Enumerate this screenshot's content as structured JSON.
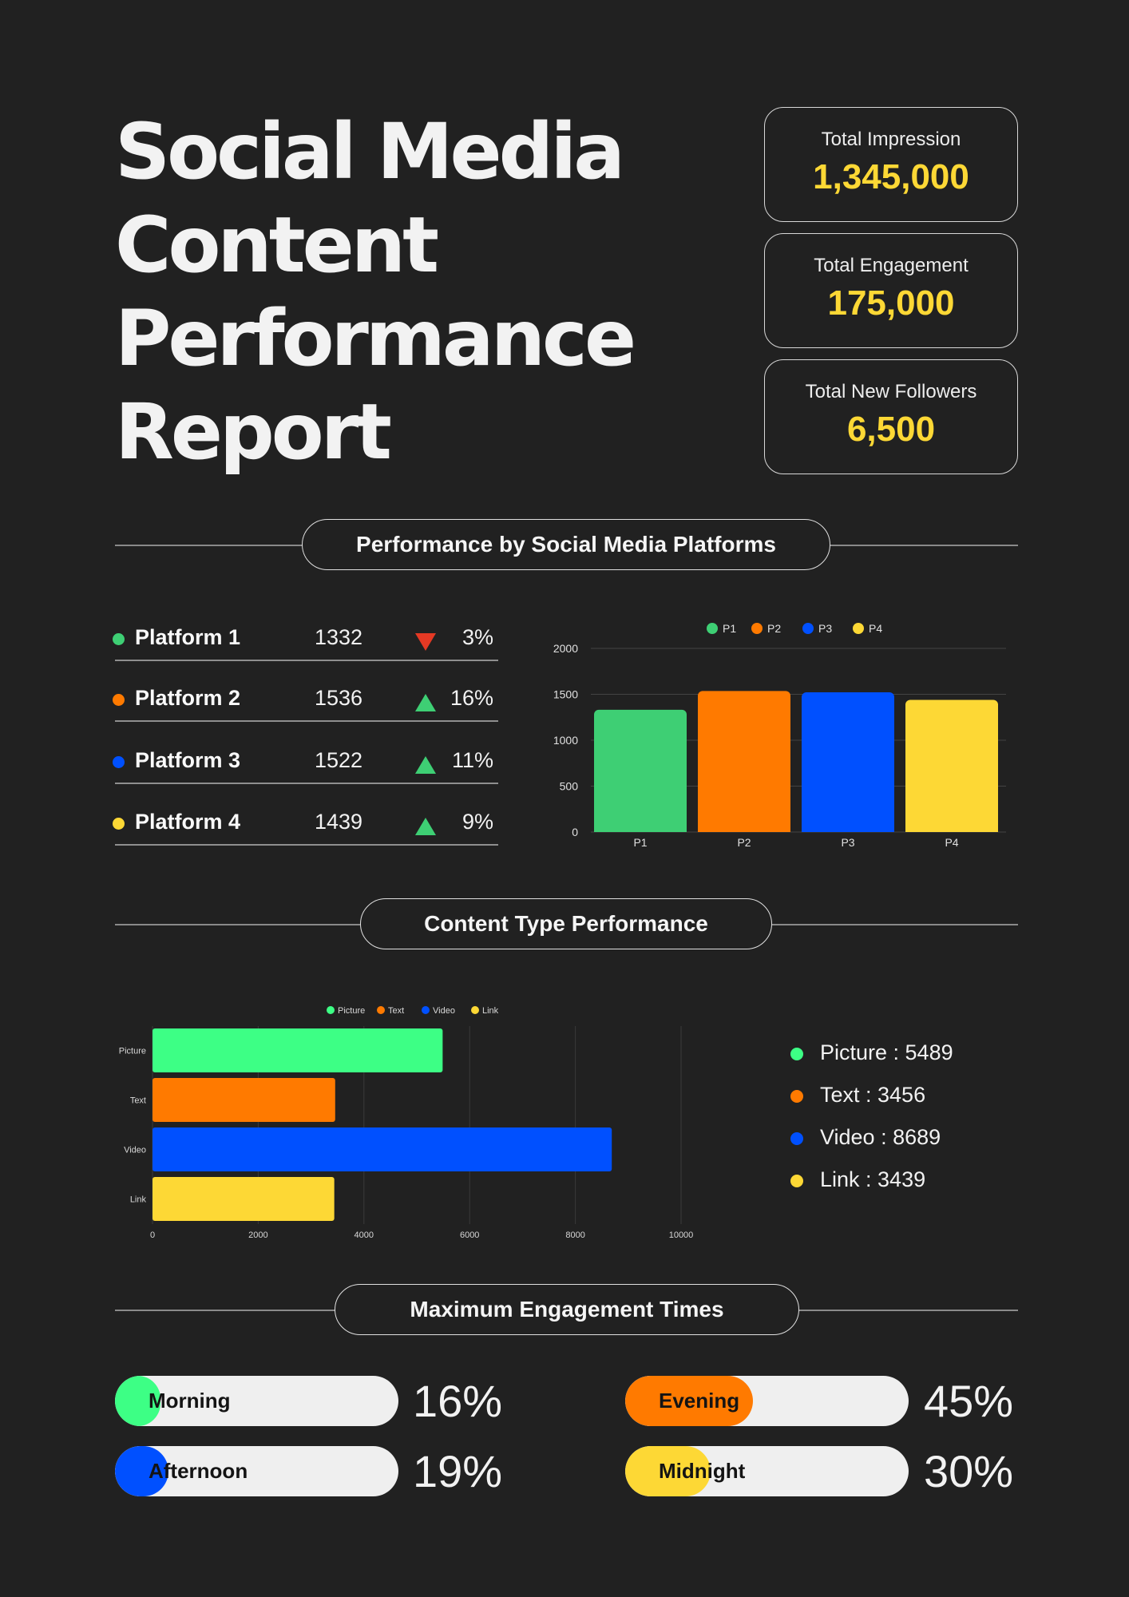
{
  "title": {
    "line1": "Social Media",
    "line2": "Content",
    "line3": "Performance",
    "line4": "Report"
  },
  "kpis": [
    {
      "label": "Total Impression",
      "value": "1,345,000"
    },
    {
      "label": "Total Engagement",
      "value": "175,000"
    },
    {
      "label": "Total New Followers",
      "value": "6,500"
    }
  ],
  "sections": {
    "platforms": "Performance by Social Media Platforms",
    "content": "Content Type Performance",
    "times": "Maximum Engagement Times"
  },
  "colors": {
    "green": "#3ecf74",
    "orange": "#ff7a00",
    "blue": "#0050ff",
    "yellow": "#fdd835",
    "accent": "#fdd835",
    "down": "#e53924",
    "up": "#3ecf74",
    "bright_green": "#3dff85"
  },
  "platforms": [
    {
      "name": "Platform 1",
      "value": "1332",
      "trend": "down",
      "change": "3%"
    },
    {
      "name": "Platform 2",
      "value": "1536",
      "trend": "up",
      "change": "16%"
    },
    {
      "name": "Platform 3",
      "value": "1522",
      "trend": "up",
      "change": "11%"
    },
    {
      "name": "Platform 4",
      "value": "1439",
      "trend": "up",
      "change": "9%"
    }
  ],
  "content_list": [
    {
      "text": "Picture : 5489"
    },
    {
      "text": "Text : 3456"
    },
    {
      "text": "Video : 8689"
    },
    {
      "text": "Link : 3439"
    }
  ],
  "times": [
    {
      "label": "Morning",
      "percent": "16%",
      "value": 16
    },
    {
      "label": "Evening",
      "percent": "45%",
      "value": 45
    },
    {
      "label": "Afternoon",
      "percent": "19%",
      "value": 19
    },
    {
      "label": "Midnight",
      "percent": "30%",
      "value": 30
    }
  ],
  "chart_data": [
    {
      "type": "bar",
      "categories": [
        "P1",
        "P2",
        "P3",
        "P4"
      ],
      "values": [
        1332,
        1536,
        1522,
        1439
      ],
      "legend": [
        "P1",
        "P2",
        "P3",
        "P4"
      ],
      "legend_position": "top",
      "ylim": [
        0,
        2000
      ],
      "yticks": [
        0,
        500,
        1000,
        1500,
        2000
      ],
      "grid": true
    },
    {
      "type": "bar",
      "orientation": "horizontal",
      "categories": [
        "Picture",
        "Text",
        "Video",
        "Link"
      ],
      "values": [
        5489,
        3456,
        8689,
        3439
      ],
      "legend": [
        "Picture",
        "Text",
        "Video",
        "Link"
      ],
      "legend_position": "top",
      "xlim": [
        0,
        10000
      ],
      "xticks": [
        0,
        2000,
        4000,
        6000,
        8000,
        10000
      ],
      "grid": true
    }
  ]
}
